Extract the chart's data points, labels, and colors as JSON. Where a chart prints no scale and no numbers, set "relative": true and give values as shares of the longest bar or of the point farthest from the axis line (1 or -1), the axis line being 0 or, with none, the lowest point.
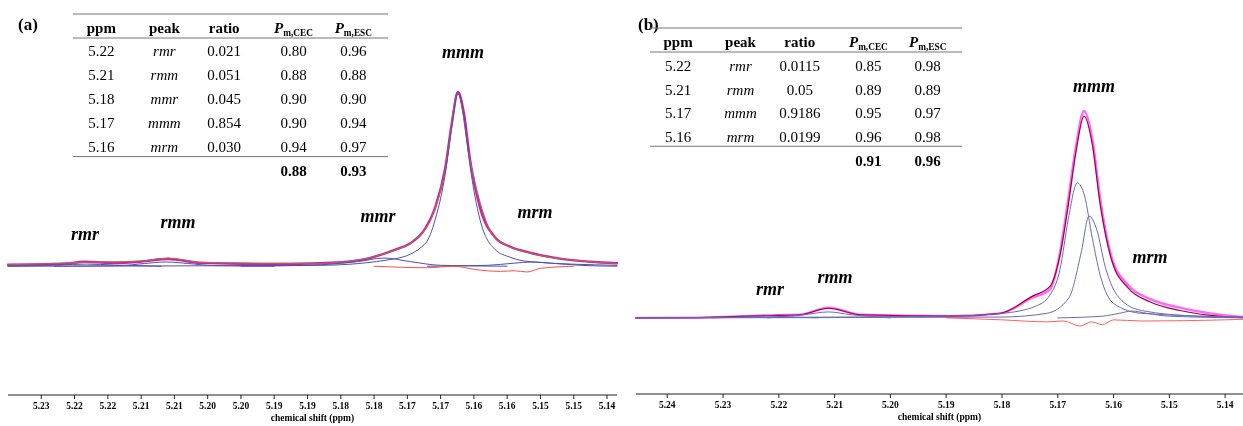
{
  "chart_data": [
    {
      "type": "line",
      "relative": true,
      "title": "(a)",
      "xlabel": "chemical shift (ppm)",
      "xlim": [
        5.235,
        5.1435
      ],
      "xticks": [
        {
          "value": 5.23,
          "label": "5.23"
        },
        {
          "value": 5.225,
          "label": "5.22"
        },
        {
          "value": 5.22,
          "label": "5.22"
        },
        {
          "value": 5.215,
          "label": "5.21"
        },
        {
          "value": 5.21,
          "label": "5.21"
        },
        {
          "value": 5.205,
          "label": "5.20"
        },
        {
          "value": 5.2,
          "label": "5.20"
        },
        {
          "value": 5.195,
          "label": "5.19"
        },
        {
          "value": 5.19,
          "label": "5.19"
        },
        {
          "value": 5.185,
          "label": "5.18"
        },
        {
          "value": 5.18,
          "label": "5.18"
        },
        {
          "value": 5.175,
          "label": "5.17"
        },
        {
          "value": 5.17,
          "label": "5.17"
        },
        {
          "value": 5.165,
          "label": "5.16"
        },
        {
          "value": 5.16,
          "label": "5.16"
        },
        {
          "value": 5.155,
          "label": "5.15"
        },
        {
          "value": 5.15,
          "label": "5.15"
        },
        {
          "value": 5.145,
          "label": "5.14"
        }
      ],
      "series": [
        {
          "color": "#d0209a",
          "x": [
            5.235,
            5.2271,
            5.2234,
            5.2196,
            5.2151,
            5.2109,
            5.2061,
            5.1971,
            5.1881,
            5.1821,
            5.1768,
            5.1746,
            5.1723,
            5.1708,
            5.1693,
            5.1683,
            5.1674,
            5.1665,
            5.1656,
            5.1641,
            5.1618,
            5.1596,
            5.1566,
            5.1521,
            5.1476,
            5.1435
          ],
          "values": [
            0.43,
            0.432,
            0.44,
            0.436,
            0.44,
            0.449,
            0.436,
            0.432,
            0.435,
            0.445,
            0.48,
            0.5,
            0.55,
            0.62,
            0.75,
            0.9,
            1.0,
            0.93,
            0.78,
            0.62,
            0.52,
            0.49,
            0.47,
            0.45,
            0.44,
            0.435
          ]
        },
        {
          "color": "#b06060",
          "x": [
            5.235,
            5.2234,
            5.2151,
            5.2109,
            5.2061,
            5.1881,
            5.1768,
            5.1723,
            5.1693,
            5.1674,
            5.1656,
            5.1618,
            5.1566,
            5.1476,
            5.1435
          ],
          "values": [
            0.43,
            0.438,
            0.442,
            0.452,
            0.438,
            0.434,
            0.478,
            0.548,
            0.745,
            0.995,
            0.775,
            0.518,
            0.468,
            0.44,
            0.434
          ]
        },
        {
          "color": "#5050b0",
          "x": [
            5.235,
            5.1881,
            5.1768,
            5.1723,
            5.1708,
            5.1693,
            5.1683,
            5.1674,
            5.1665,
            5.1656,
            5.1641,
            5.1618,
            5.1596,
            5.1566,
            5.1435
          ],
          "values": [
            0.425,
            0.428,
            0.45,
            0.5,
            0.58,
            0.73,
            0.89,
            0.995,
            0.92,
            0.76,
            0.58,
            0.48,
            0.455,
            0.44,
            0.428
          ]
        },
        {
          "color": "#5050b0",
          "x": [
            5.2,
            5.19,
            5.1825,
            5.1785,
            5.1745,
            5.17,
            5.16
          ],
          "values": [
            0.425,
            0.428,
            0.44,
            0.452,
            0.44,
            0.428,
            0.425
          ]
        },
        {
          "color": "#5050b0",
          "x": [
            5.172,
            5.163,
            5.159,
            5.1563,
            5.1535,
            5.149,
            5.1435
          ],
          "values": [
            0.425,
            0.428,
            0.435,
            0.439,
            0.435,
            0.428,
            0.425
          ]
        },
        {
          "color": "#5050b0",
          "x": [
            5.228,
            5.218,
            5.2145,
            5.2112,
            5.208,
            5.204,
            5.195
          ],
          "values": [
            0.425,
            0.427,
            0.434,
            0.439,
            0.434,
            0.427,
            0.425
          ]
        },
        {
          "color": "#5050b0",
          "x": [
            5.235,
            5.2275,
            5.2232,
            5.219,
            5.212
          ],
          "values": [
            0.425,
            0.429,
            0.432,
            0.429,
            0.425
          ]
        },
        {
          "color": "#ff4d4d",
          "x": [
            5.18,
            5.172,
            5.168,
            5.165,
            5.163,
            5.161,
            5.159,
            5.157,
            5.155,
            5.15
          ],
          "values": [
            0.425,
            0.42,
            0.425,
            0.415,
            0.41,
            0.408,
            0.41,
            0.406,
            0.418,
            0.425
          ]
        }
      ],
      "annotations": [
        "ppm",
        "peak",
        "ratio",
        "P$_{m,CEC}$",
        "P$_{m,ESC}$",
        "5.22",
        "rmr",
        "0.021",
        "0.80",
        "0.96",
        "5.21",
        "rmm",
        "0.051",
        "0.88",
        "0.88",
        "5.18",
        "mmr",
        "0.045",
        "0.90",
        "0.90",
        "5.17",
        "mmm",
        "0.854",
        "0.90",
        "0.94",
        "5.16",
        "mrm",
        "0.030",
        "0.94",
        "0.97",
        "0.88",
        "0.93",
        "rmr",
        "rmm",
        "mmr",
        "mmm",
        "mrm"
      ]
    },
    {
      "type": "line",
      "relative": true,
      "title": "(b)",
      "xlabel": "chemical shift (ppm)",
      "xlim": [
        5.2456,
        5.1368
      ],
      "xticks": [
        5.24,
        5.23,
        5.22,
        5.21,
        {
          "value": 5.2,
          "label": "5.20"
        },
        5.19,
        5.18,
        5.17,
        5.16,
        5.15,
        5.14
      ],
      "series": [
        {
          "color": "#ff66ff",
          "x": [
            5.2456,
            5.2341,
            5.2223,
            5.2162,
            5.2111,
            5.2054,
            5.1893,
            5.1803,
            5.1746,
            5.1714,
            5.1696,
            5.1681,
            5.1667,
            5.1653,
            5.1638,
            5.1624,
            5.1603,
            5.1574,
            5.1534,
            5.1481,
            5.1427,
            5.1368
          ],
          "values": [
            0.269,
            0.27,
            0.278,
            0.28,
            0.305,
            0.28,
            0.275,
            0.285,
            0.34,
            0.37,
            0.5,
            0.69,
            0.88,
            1.0,
            0.9,
            0.69,
            0.48,
            0.385,
            0.335,
            0.305,
            0.285,
            0.272
          ]
        },
        {
          "color": "#a0003a",
          "x": [
            5.2456,
            5.2341,
            5.2223,
            5.2162,
            5.2111,
            5.2054,
            5.1893,
            5.1803,
            5.1746,
            5.1714,
            5.1696,
            5.1681,
            5.1667,
            5.1653,
            5.1638,
            5.1624,
            5.1603,
            5.1574,
            5.1534,
            5.1481,
            5.1427,
            5.1368
          ],
          "values": [
            0.269,
            0.27,
            0.277,
            0.28,
            0.303,
            0.28,
            0.275,
            0.285,
            0.345,
            0.38,
            0.49,
            0.67,
            0.86,
            0.982,
            0.88,
            0.67,
            0.47,
            0.375,
            0.325,
            0.295,
            0.278,
            0.27
          ]
        },
        {
          "color": "#6a6ab8",
          "x": [
            5.2456,
            5.19,
            5.18,
            5.174,
            5.1714,
            5.1696,
            5.1681,
            5.1665,
            5.1652,
            5.1638,
            5.1624,
            5.16,
            5.155,
            5.1368
          ],
          "values": [
            0.269,
            0.275,
            0.285,
            0.31,
            0.35,
            0.44,
            0.62,
            0.746,
            0.7,
            0.55,
            0.42,
            0.32,
            0.285,
            0.272
          ]
        },
        {
          "color": "#6a6ab8",
          "x": [
            5.2456,
            5.18,
            5.172,
            5.168,
            5.1658,
            5.1644,
            5.163,
            5.1615,
            5.159,
            5.155,
            5.145,
            5.1368
          ],
          "values": [
            0.269,
            0.272,
            0.285,
            0.34,
            0.5,
            0.629,
            0.58,
            0.45,
            0.34,
            0.295,
            0.275,
            0.271
          ]
        },
        {
          "color": "#6a6ab8",
          "x": [
            5.17,
            5.162,
            5.159,
            5.1567,
            5.154,
            5.15,
            5.1368
          ],
          "values": [
            0.269,
            0.275,
            0.285,
            0.293,
            0.285,
            0.275,
            0.269
          ]
        },
        {
          "color": "#6a6ab8",
          "x": [
            5.222,
            5.2155,
            5.2111,
            5.207,
            5.2
          ],
          "values": [
            0.269,
            0.28,
            0.29,
            0.28,
            0.269
          ]
        },
        {
          "color": "#6a6ab8",
          "x": [
            5.232,
            5.2255,
            5.2223,
            5.219,
            5.213
          ],
          "values": [
            0.269,
            0.273,
            0.276,
            0.273,
            0.269
          ]
        },
        {
          "color": "#ff6060",
          "x": [
            5.19,
            5.18,
            5.172,
            5.169,
            5.166,
            5.164,
            5.162,
            5.16,
            5.155,
            5.14,
            5.1368
          ],
          "values": [
            0.269,
            0.262,
            0.255,
            0.258,
            0.24,
            0.255,
            0.245,
            0.262,
            0.258,
            0.262,
            0.264
          ]
        }
      ],
      "annotations": [
        "ppm",
        "peak",
        "ratio",
        "P$_{m,CEC}$",
        "P$_{m,ESC}$",
        "5.22",
        "rmr",
        "0.0115",
        "0.85",
        "0.98",
        "5.21",
        "rmm",
        "0.05",
        "0.89",
        "0.89",
        "5.17",
        "mmm",
        "0.9186",
        "0.95",
        "0.97",
        "5.16",
        "mrm",
        "0.0199",
        "0.96",
        "0.98",
        "0.91",
        "0.96",
        "rmr",
        "rmm",
        "mmm",
        "mrm"
      ]
    }
  ]
}
